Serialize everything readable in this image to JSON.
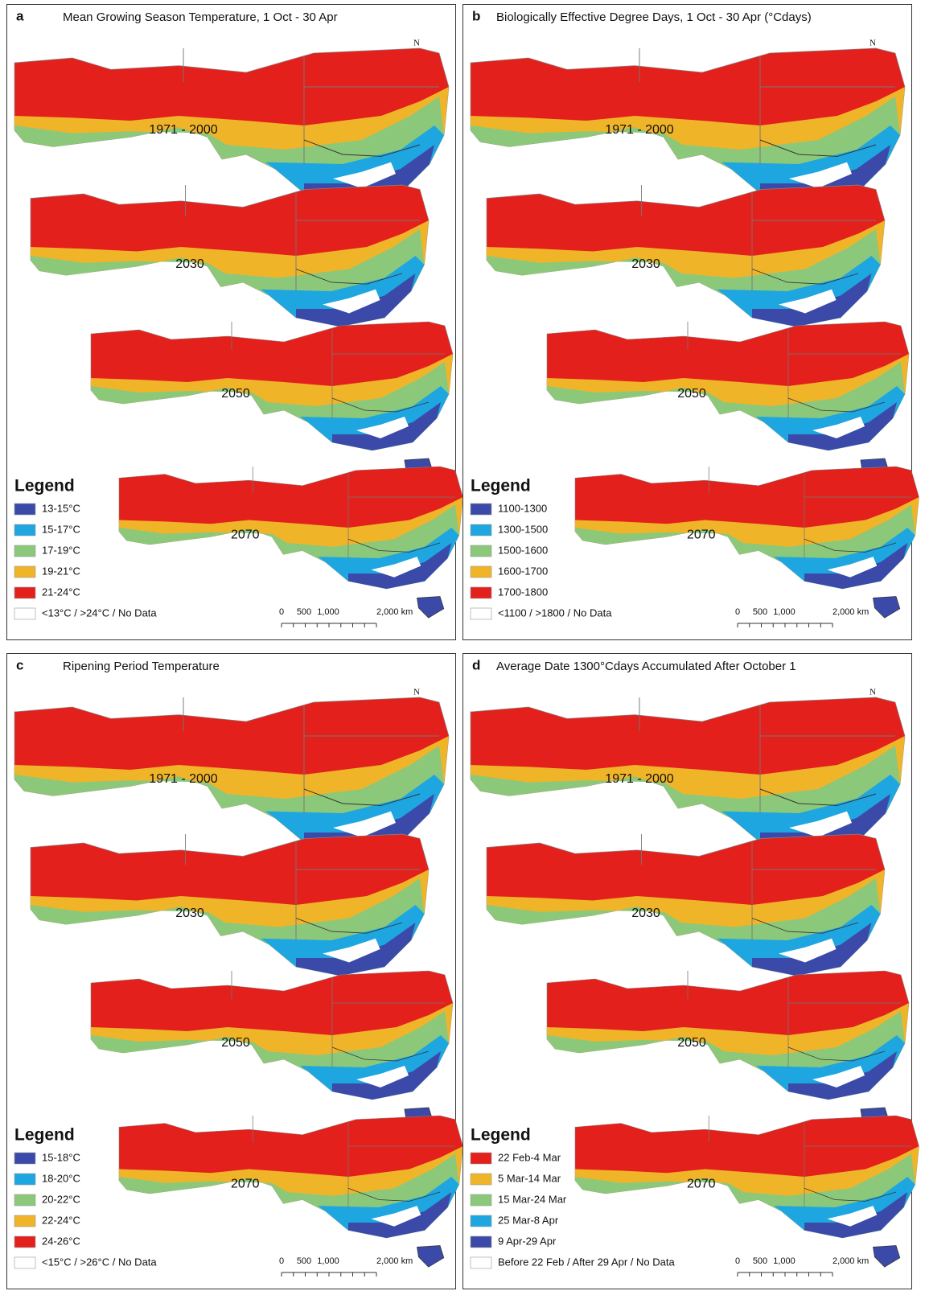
{
  "panels": [
    {
      "letter": "a",
      "title": "Mean Growing Season Temperature, 1 Oct - 30 Apr",
      "years": [
        "1971 - 2000",
        "2030",
        "2050",
        "2070"
      ],
      "legend": {
        "title": "Legend",
        "items": [
          {
            "label": "13-15°C",
            "color": "#3b4aa8"
          },
          {
            "label": "15-17°C",
            "color": "#1ea6e0"
          },
          {
            "label": "17-19°C",
            "color": "#8cc87a"
          },
          {
            "label": "19-21°C",
            "color": "#f0b429"
          },
          {
            "label": "21-24°C",
            "color": "#e3201b"
          },
          {
            "label": "<13°C / >24°C / No Data",
            "color": "#ffffff"
          }
        ]
      },
      "scale": [
        "0",
        "500",
        "1,000",
        "2,000 km"
      ],
      "north": "N"
    },
    {
      "letter": "b",
      "title": "Biologically Effective Degree Days, 1 Oct - 30 Apr (°Cdays)",
      "years": [
        "1971 - 2000",
        "2030",
        "2050",
        "2070"
      ],
      "legend": {
        "title": "Legend",
        "items": [
          {
            "label": "1100-1300",
            "color": "#3b4aa8"
          },
          {
            "label": "1300-1500",
            "color": "#1ea6e0"
          },
          {
            "label": "1500-1600",
            "color": "#8cc87a"
          },
          {
            "label": "1600-1700",
            "color": "#f0b429"
          },
          {
            "label": "1700-1800",
            "color": "#e3201b"
          },
          {
            "label": "<1100 / >1800 / No Data",
            "color": "#ffffff"
          }
        ]
      },
      "scale": [
        "0",
        "500",
        "1,000",
        "2,000 km"
      ],
      "north": "N"
    },
    {
      "letter": "c",
      "title": "Ripening Period Temperature",
      "years": [
        "1971 - 2000",
        "2030",
        "2050",
        "2070"
      ],
      "legend": {
        "title": "Legend",
        "items": [
          {
            "label": "15-18°C",
            "color": "#3b4aa8"
          },
          {
            "label": "18-20°C",
            "color": "#1ea6e0"
          },
          {
            "label": "20-22°C",
            "color": "#8cc87a"
          },
          {
            "label": "22-24°C",
            "color": "#f0b429"
          },
          {
            "label": "24-26°C",
            "color": "#e3201b"
          },
          {
            "label": "<15°C / >26°C / No Data",
            "color": "#ffffff"
          }
        ]
      },
      "scale": [
        "0",
        "500",
        "1,000",
        "2,000 km"
      ],
      "north": "N"
    },
    {
      "letter": "d",
      "title": "Average Date 1300°Cdays Accumulated After October 1",
      "years": [
        "1971 - 2000",
        "2030",
        "2050",
        "2070"
      ],
      "legend": {
        "title": "Legend",
        "items": [
          {
            "label": "22 Feb-4 Mar",
            "color": "#e3201b"
          },
          {
            "label": "5 Mar-14 Mar",
            "color": "#f0b429"
          },
          {
            "label": "15 Mar-24 Mar",
            "color": "#8cc87a"
          },
          {
            "label": "25 Mar-8 Apr",
            "color": "#1ea6e0"
          },
          {
            "label": "9 Apr-29 Apr",
            "color": "#3b4aa8"
          },
          {
            "label": "Before 22 Feb / After 29 Apr / No Data",
            "color": "#ffffff"
          }
        ]
      },
      "scale": [
        "0",
        "500",
        "1,000",
        "2,000 km"
      ],
      "north": "N"
    }
  ]
}
